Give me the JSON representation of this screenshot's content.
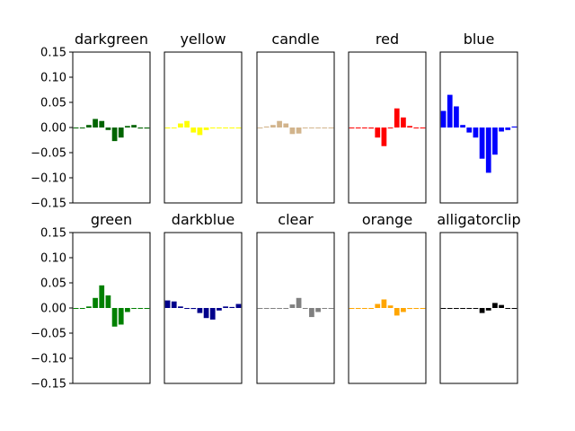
{
  "chart_data": {
    "type": "bar",
    "ylim": [
      -0.15,
      0.15
    ],
    "yticks": [
      -0.15,
      -0.1,
      -0.05,
      0.0,
      0.05,
      0.1,
      0.15
    ],
    "ytick_labels": [
      "−0.15",
      "−0.10",
      "−0.05",
      "0.00",
      "0.05",
      "0.10",
      "0.15"
    ],
    "grid": false,
    "panels": [
      {
        "title": "darkgreen",
        "color": "#006400",
        "values": [
          0.0,
          0.0,
          0.005,
          0.017,
          0.013,
          -0.005,
          -0.027,
          -0.02,
          0.003,
          0.005,
          -0.002,
          -0.002
        ]
      },
      {
        "title": "yellow",
        "color": "#ffff00",
        "values": [
          0.0,
          0.0,
          0.008,
          0.013,
          -0.01,
          -0.015,
          -0.005,
          0.0,
          0.0,
          0.0,
          0.0,
          0.0
        ]
      },
      {
        "title": "candle",
        "color": "#d2b48c",
        "values": [
          0.0,
          0.002,
          0.005,
          0.013,
          0.008,
          -0.013,
          -0.012,
          0.0,
          0.0,
          0.0,
          0.0,
          0.0
        ]
      },
      {
        "title": "red",
        "color": "#ff0000",
        "values": [
          0.0,
          0.0,
          0.0,
          -0.002,
          -0.02,
          -0.037,
          0.0,
          0.038,
          0.02,
          0.003,
          0.0,
          0.0
        ]
      },
      {
        "title": "blue",
        "color": "#0000ff",
        "values": [
          0.033,
          0.065,
          0.042,
          0.005,
          -0.01,
          -0.02,
          -0.062,
          -0.09,
          -0.054,
          -0.008,
          -0.005,
          0.002
        ]
      },
      {
        "title": "green",
        "color": "#008000",
        "values": [
          0.0,
          0.0,
          0.003,
          0.02,
          0.045,
          0.025,
          -0.037,
          -0.033,
          -0.008,
          0.0,
          0.0,
          0.0
        ]
      },
      {
        "title": "darkblue",
        "color": "#00008b",
        "values": [
          0.015,
          0.013,
          0.003,
          0.0,
          -0.002,
          -0.01,
          -0.02,
          -0.023,
          -0.005,
          0.003,
          0.002,
          0.008
        ]
      },
      {
        "title": "clear",
        "color": "#808080",
        "values": [
          0.0,
          0.0,
          0.0,
          0.0,
          0.0,
          0.007,
          0.02,
          0.0,
          -0.018,
          -0.008,
          0.0,
          0.0
        ]
      },
      {
        "title": "orange",
        "color": "#ffa500",
        "values": [
          0.0,
          0.0,
          0.0,
          0.0,
          0.008,
          0.017,
          0.005,
          -0.015,
          -0.008,
          -0.002,
          0.0,
          0.0
        ]
      },
      {
        "title": "alligatorclip",
        "color": "#000000",
        "values": [
          0.0,
          0.0,
          0.0,
          0.0,
          0.0,
          0.0,
          -0.01,
          -0.005,
          0.01,
          0.006,
          0.0,
          0.0
        ]
      }
    ]
  }
}
